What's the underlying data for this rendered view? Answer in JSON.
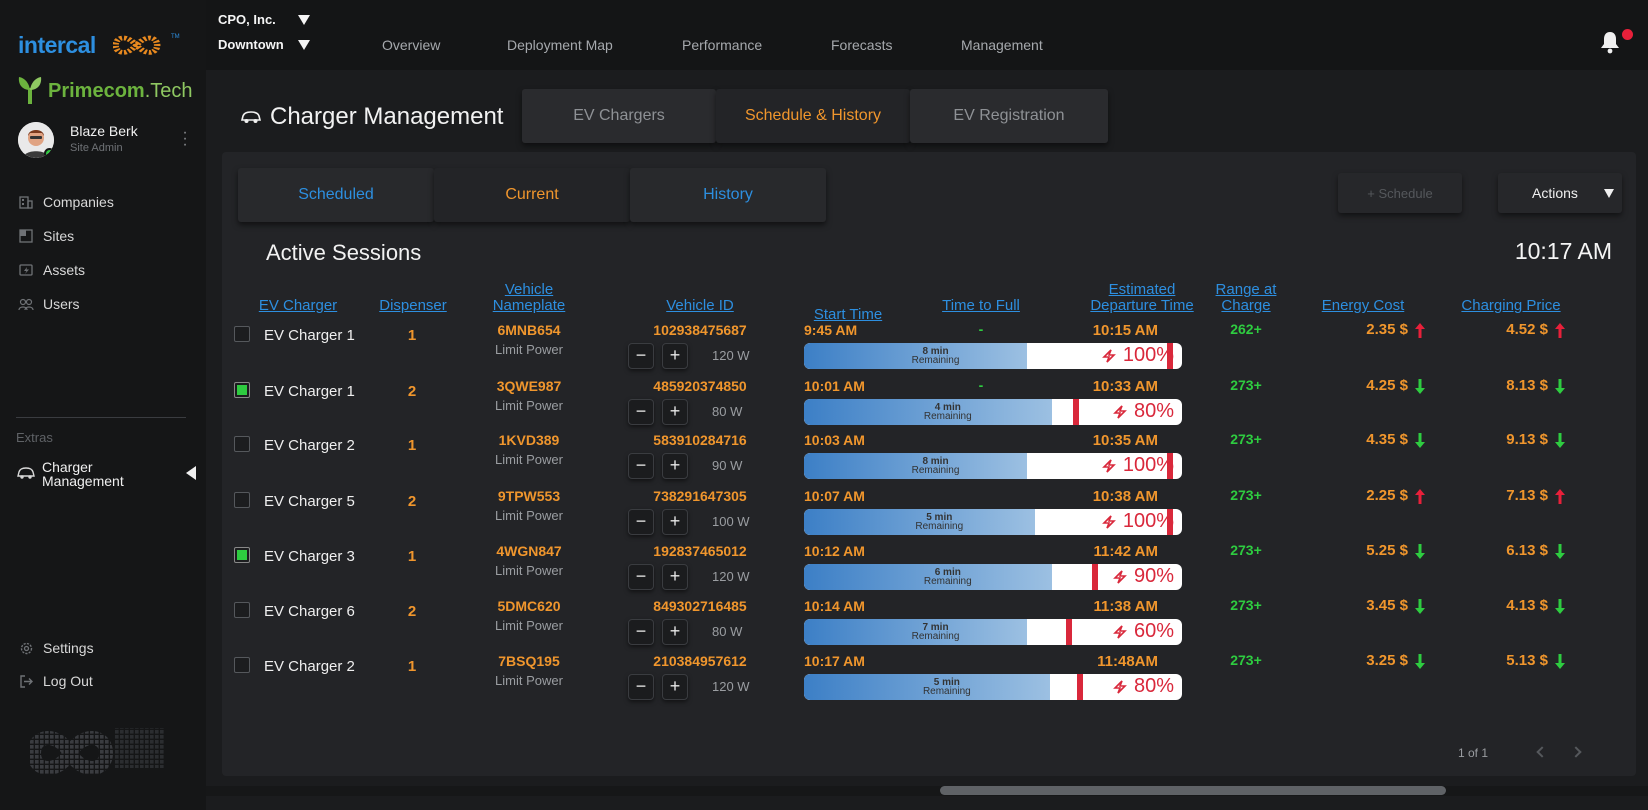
{
  "brand": {
    "intercal": "intercal",
    "intercal_tm": "TM",
    "primecom_a": "Primecom",
    "primecom_b": ".Tech"
  },
  "user": {
    "name": "Blaze Berk",
    "role": "Site Admin"
  },
  "sidebar": {
    "items": [
      {
        "label": "Companies",
        "icon": "building-icon"
      },
      {
        "label": "Sites",
        "icon": "grid-icon"
      },
      {
        "label": "Assets",
        "icon": "charger-icon"
      },
      {
        "label": "Users",
        "icon": "users-icon"
      }
    ],
    "extras_label": "Extras",
    "active_item_line1": "Charger",
    "active_item_line2": "Management",
    "settings": "Settings",
    "logout": "Log Out"
  },
  "topbar": {
    "org": "CPO, Inc.",
    "site": "Downtown",
    "nav": [
      "Overview",
      "Deployment Map",
      "Performance",
      "Forecasts",
      "Management"
    ]
  },
  "page": {
    "title": "Charger Management",
    "tabs": [
      "EV Chargers",
      "Schedule & History",
      "EV Registration"
    ],
    "active_tab": "Schedule & History"
  },
  "card": {
    "subtabs": [
      "Scheduled",
      "Current",
      "History"
    ],
    "active_subtab": "Current",
    "schedule_button": "+ Schedule",
    "actions_button": "Actions",
    "section_title": "Active Sessions",
    "clock": "10:17 AM",
    "headers": {
      "ev_charger": "EV Charger",
      "dispenser": "Dispenser",
      "plate_1": "Vehicle",
      "plate_2": "Nameplate",
      "vehicle_id": "Vehicle ID",
      "start": "Start Time",
      "ttf": "Time to Full",
      "dep_1": "Estimated",
      "dep_2": "Departure Time",
      "range_1": "Range at",
      "range_2": "Charge",
      "energy": "Energy Cost",
      "price": "Charging Price"
    },
    "limit_label": "Limit Power",
    "remaining_label": "Remaining",
    "minus": "−",
    "plus": "+",
    "pager": "1 of 1"
  },
  "sessions": [
    {
      "checked": false,
      "charger": "EV Charger 1",
      "dispenser": "1",
      "plate": "6MNB654",
      "vehicle_id": "102938475687",
      "power": "120 W",
      "start": "9:45 AM",
      "ttf": "-",
      "departure": "10:15 AM",
      "remaining": "8 min",
      "fill": 0.59,
      "target": 1.0,
      "pct": "100%",
      "range": "262+",
      "energy": "2.35 $",
      "energy_trend": "up",
      "price": "4.52 $",
      "price_trend": "up"
    },
    {
      "checked": true,
      "charger": "EV Charger 1",
      "dispenser": "2",
      "plate": "3QWE987",
      "vehicle_id": "485920374850",
      "power": "80 W",
      "start": "10:01 AM",
      "ttf": "-",
      "departure": "10:33 AM",
      "remaining": "4 min",
      "fill": 0.655,
      "target": 0.72,
      "pct": "80%",
      "range": "273+",
      "energy": "4.25 $",
      "energy_trend": "down",
      "price": "8.13 $",
      "price_trend": "down"
    },
    {
      "checked": false,
      "charger": "EV Charger 2",
      "dispenser": "1",
      "plate": "1KVD389",
      "vehicle_id": "583910284716",
      "power": "90 W",
      "start": "10:03 AM",
      "ttf": "",
      "departure": "10:35 AM",
      "remaining": "8 min",
      "fill": 0.59,
      "target": 1.0,
      "pct": "100%",
      "range": "273+",
      "energy": "4.35 $",
      "energy_trend": "down",
      "price": "9.13 $",
      "price_trend": "down"
    },
    {
      "checked": false,
      "charger": "EV Charger 5",
      "dispenser": "2",
      "plate": "9TPW553",
      "vehicle_id": "738291647305",
      "power": "100 W",
      "start": "10:07 AM",
      "ttf": "",
      "departure": "10:38 AM",
      "remaining": "5 min",
      "fill": 0.61,
      "target": 1.0,
      "pct": "100%",
      "range": "273+",
      "energy": "2.25 $",
      "energy_trend": "up",
      "price": "7.13 $",
      "price_trend": "up"
    },
    {
      "checked": true,
      "charger": "EV Charger 3",
      "dispenser": "1",
      "plate": "4WGN847",
      "vehicle_id": "192837465012",
      "power": "120 W",
      "start": "10:12 AM",
      "ttf": "",
      "departure": "11:42 AM",
      "remaining": "6 min",
      "fill": 0.655,
      "target": 0.77,
      "pct": "90%",
      "range": "273+",
      "energy": "5.25 $",
      "energy_trend": "down",
      "price": "6.13 $",
      "price_trend": "down"
    },
    {
      "checked": false,
      "charger": "EV Charger 6",
      "dispenser": "2",
      "plate": "5DMC620",
      "vehicle_id": "849302716485",
      "power": "80 W",
      "start": "10:14 AM",
      "ttf": "",
      "departure": "11:38 AM",
      "remaining": "7 min",
      "fill": 0.59,
      "target": 0.7,
      "pct": "60%",
      "range": "273+",
      "energy": "3.45 $",
      "energy_trend": "down",
      "price": "4.13 $",
      "price_trend": "down"
    },
    {
      "checked": false,
      "charger": "EV Charger 2",
      "dispenser": "1",
      "plate": "7BSQ195",
      "vehicle_id": "210384957612",
      "power": "120 W",
      "start": "10:17 AM",
      "ttf": "",
      "departure": "11:48AM",
      "remaining": "5 min",
      "fill": 0.65,
      "target": 0.73,
      "pct": "80%",
      "range": "273+",
      "energy": "3.25 $",
      "energy_trend": "down",
      "price": "5.13 $",
      "price_trend": "down"
    }
  ],
  "colors": {
    "accent_orange": "#f0962d",
    "link_blue": "#2d8fe0",
    "green": "#2ecc40",
    "red": "#d9283b"
  }
}
